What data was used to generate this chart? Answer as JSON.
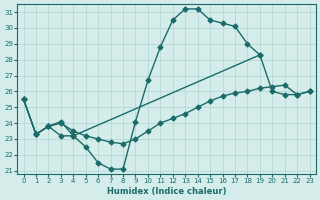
{
  "xlabel": "Humidex (Indice chaleur)",
  "bg_color": "#d4ecea",
  "grid_color": "#b0d4d0",
  "line_color": "#1a6b6a",
  "xlim": [
    -0.5,
    23.5
  ],
  "ylim": [
    20.8,
    31.5
  ],
  "yticks": [
    21,
    22,
    23,
    24,
    25,
    26,
    27,
    28,
    29,
    30,
    31
  ],
  "xticks": [
    0,
    1,
    2,
    3,
    4,
    5,
    6,
    7,
    8,
    9,
    10,
    11,
    12,
    13,
    14,
    15,
    16,
    17,
    18,
    19,
    20,
    21,
    22,
    23
  ],
  "line1_y": [
    25.5,
    23.3,
    23.8,
    23.2,
    23.2,
    22.5,
    21.5,
    21.1,
    21.1,
    24.1,
    26.7,
    28.8,
    30.5,
    31.2,
    31.2,
    30.5,
    30.3,
    30.1,
    29.0,
    28.3,
    null,
    null,
    null,
    null
  ],
  "line2_y": [
    25.5,
    23.3,
    23.8,
    24.1,
    23.2,
    null,
    null,
    null,
    null,
    null,
    null,
    null,
    null,
    null,
    null,
    null,
    null,
    null,
    null,
    28.3,
    26.0,
    25.8,
    25.8,
    26.0
  ],
  "line3_y": [
    25.5,
    23.3,
    23.8,
    24.0,
    23.5,
    23.2,
    23.0,
    22.8,
    22.7,
    23.0,
    23.5,
    24.0,
    24.3,
    24.6,
    25.0,
    25.4,
    25.7,
    25.9,
    26.0,
    26.2,
    26.3,
    26.4,
    25.8,
    26.0
  ]
}
